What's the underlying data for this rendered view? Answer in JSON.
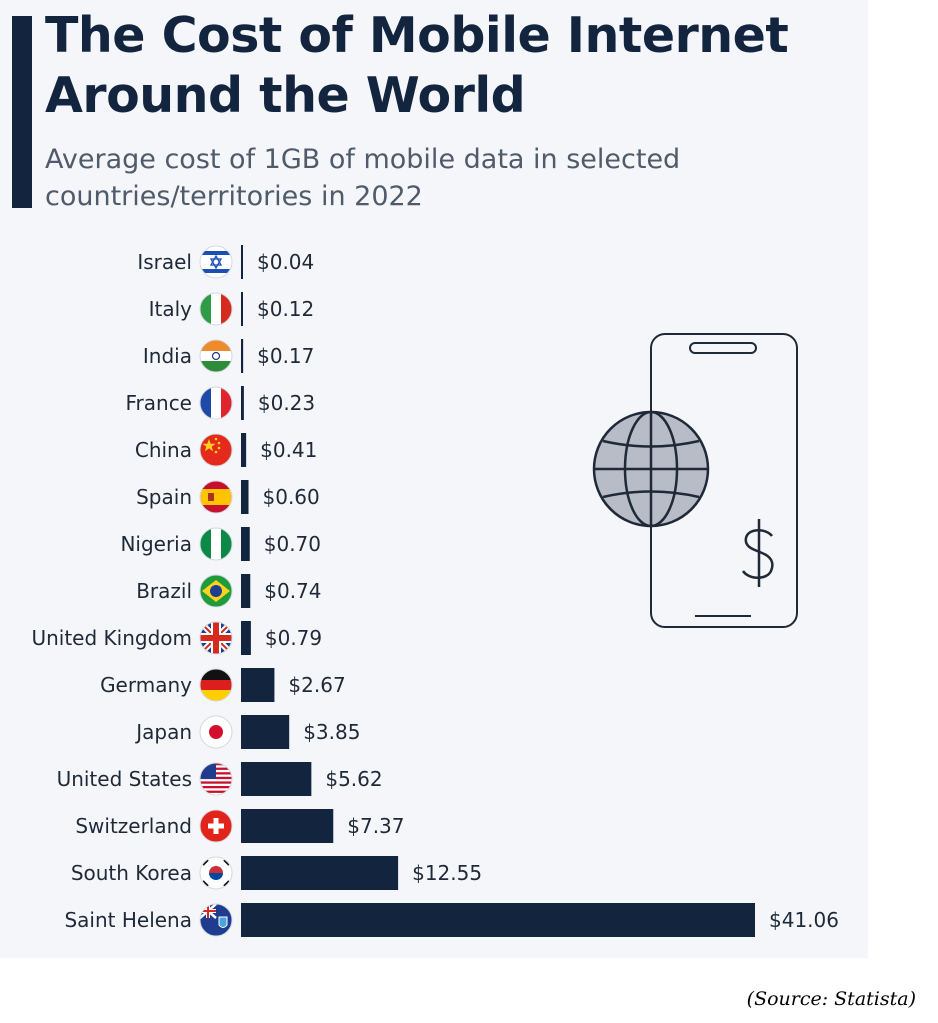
{
  "header": {
    "title": "The Cost of Mobile Internet Around the World",
    "subtitle": "Average cost of 1GB of mobile data in selected countries/territories in 2022"
  },
  "source": "(Source: Statista)",
  "colors": {
    "bar": "#13243f",
    "background": "#f4f6f9",
    "illustration_stroke": "#1f2937",
    "globe_fill": "#b8bcc6"
  },
  "icons": [
    "smartphone-icon",
    "globe-icon",
    "dollar-sign-icon"
  ],
  "chart_data": {
    "type": "bar",
    "orientation": "horizontal",
    "title": "The Cost of Mobile Internet Around the World",
    "subtitle": "Average cost of 1GB of mobile data in selected countries/territories in 2022",
    "categories": [
      "Israel",
      "Italy",
      "India",
      "France",
      "China",
      "Spain",
      "Nigeria",
      "Brazil",
      "United Kingdom",
      "Germany",
      "Japan",
      "United States",
      "Switzerland",
      "South Korea",
      "Saint Helena"
    ],
    "values": [
      0.04,
      0.12,
      0.17,
      0.23,
      0.41,
      0.6,
      0.7,
      0.74,
      0.79,
      2.67,
      3.85,
      5.62,
      7.37,
      12.55,
      41.06
    ],
    "value_labels": [
      "$0.04",
      "$0.12",
      "$0.17",
      "$0.23",
      "$0.41",
      "$0.60",
      "$0.70",
      "$0.74",
      "$0.79",
      "$2.67",
      "$3.85",
      "$5.62",
      "$7.37",
      "$12.55",
      "$41.06"
    ],
    "flags": [
      "israel-flag-icon",
      "italy-flag-icon",
      "india-flag-icon",
      "france-flag-icon",
      "china-flag-icon",
      "spain-flag-icon",
      "nigeria-flag-icon",
      "brazil-flag-icon",
      "uk-flag-icon",
      "germany-flag-icon",
      "japan-flag-icon",
      "usa-flag-icon",
      "switzerland-flag-icon",
      "south-korea-flag-icon",
      "saint-helena-flag-icon"
    ],
    "xlim": [
      0,
      41.06
    ],
    "grid": false,
    "legend": "none"
  }
}
